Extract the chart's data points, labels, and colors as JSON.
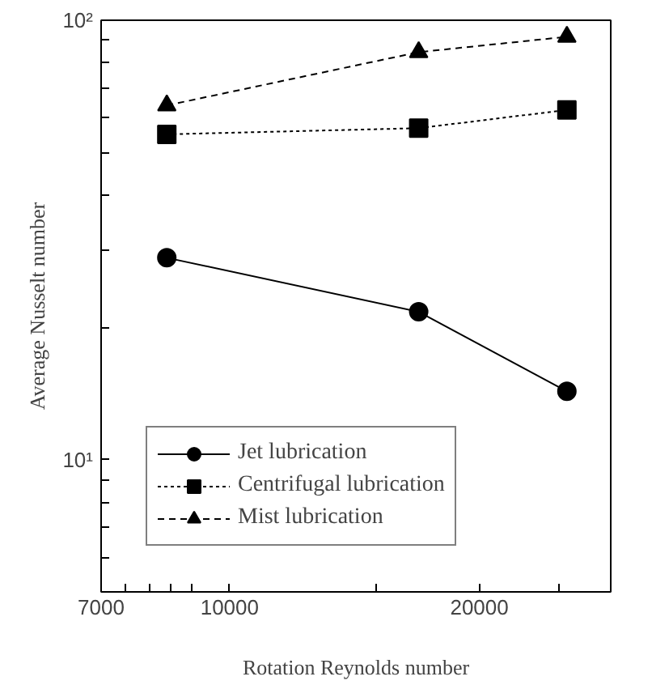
{
  "chart_data": {
    "type": "line",
    "xlabel": "Rotation Reynolds number",
    "ylabel": "Average Nusselt number",
    "x": [
      8400,
      16900,
      25500
    ],
    "series": [
      {
        "name": "Jet lubrication",
        "color": "#000000",
        "values": [
          28.8,
          21.7,
          14.3
        ],
        "marker": "circle",
        "line_style": "solid"
      },
      {
        "name": "Centrifugal lubrication",
        "color": "#000000",
        "values": [
          55,
          56.8,
          62.5
        ],
        "marker": "square",
        "line_style": "dotted"
      },
      {
        "name": "Mist lubrication",
        "color": "#000000",
        "values": [
          64,
          84.6,
          91.7
        ],
        "marker": "triangle",
        "line_style": "dashed"
      }
    ],
    "log": "xy",
    "xlim": [
      7000,
      28800
    ],
    "ylim": [
      5,
      100
    ],
    "xticks": [
      7000,
      {
        "value": 7500,
        "label": null
      },
      {
        "value": 8000,
        "label": null
      },
      {
        "value": 8500,
        "label": null
      },
      {
        "value": 9000,
        "label": null
      },
      10000,
      {
        "value": 15000,
        "label": null
      },
      20000,
      {
        "value": 25000,
        "label": null
      }
    ],
    "yticks": [
      {
        "value": 6,
        "label": null
      },
      {
        "value": 7,
        "label": null
      },
      {
        "value": 8,
        "label": null
      },
      {
        "value": 9,
        "label": null
      },
      {
        "value": 10,
        "label": "10¹"
      },
      {
        "value": 20,
        "label": null
      },
      {
        "value": 30,
        "label": null
      },
      {
        "value": 40,
        "label": null
      },
      {
        "value": 50,
        "label": null
      },
      {
        "value": 60,
        "label": null
      },
      {
        "value": 70,
        "label": null
      },
      {
        "value": 80,
        "label": null
      },
      {
        "value": 90,
        "label": null
      },
      {
        "value": 100,
        "label": "10²"
      }
    ],
    "grid": false,
    "legend": "bottom left"
  }
}
